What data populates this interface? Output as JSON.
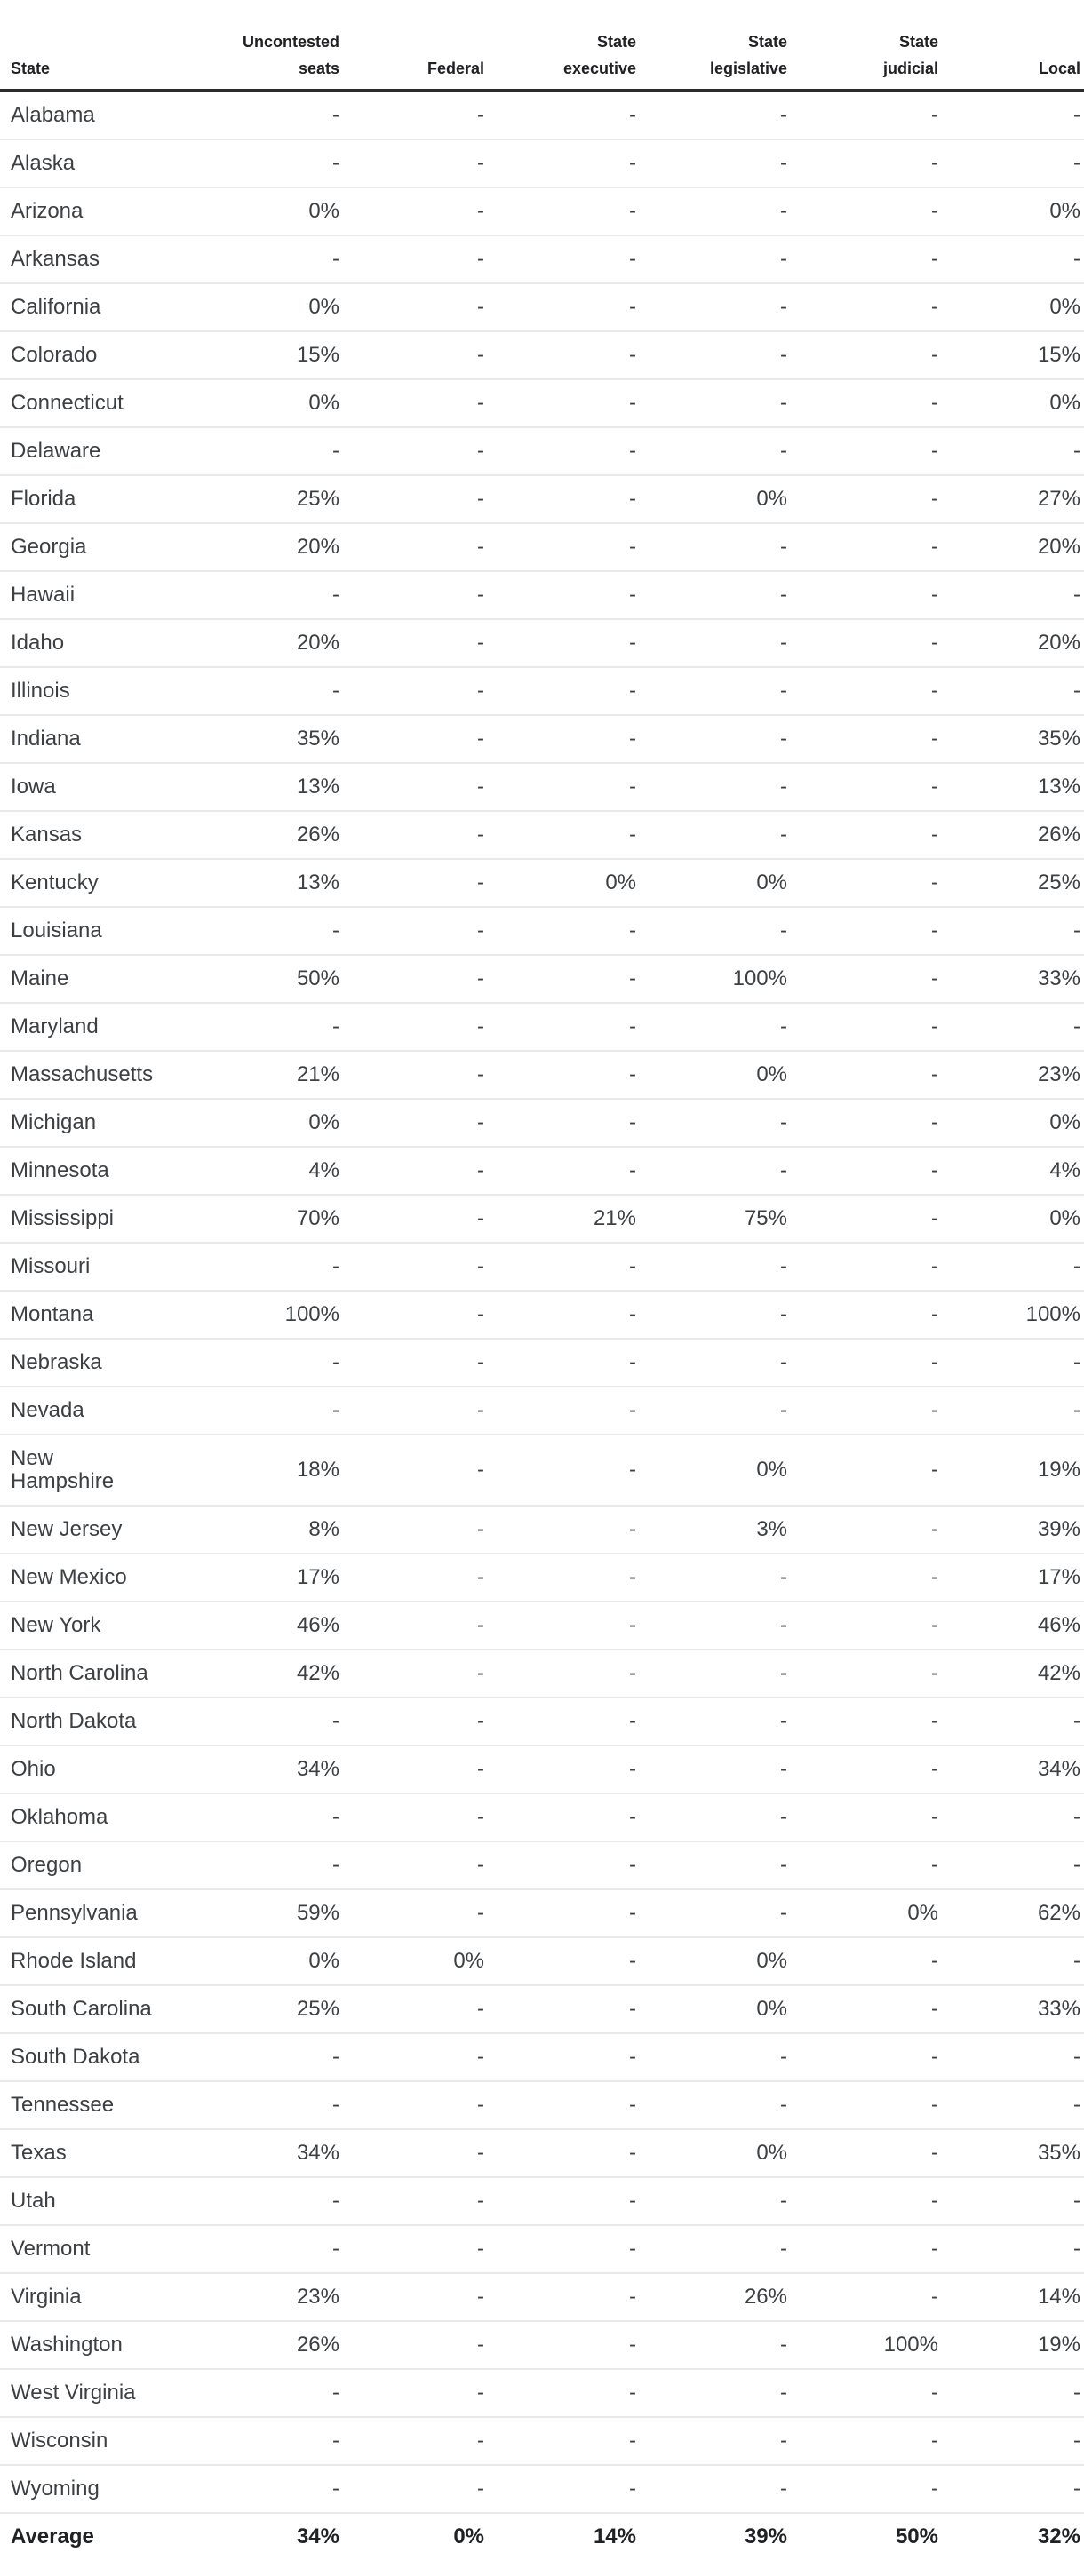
{
  "colors": {
    "text": "#3c4043",
    "heading": "#202124",
    "header_rule": "#2b2b2b",
    "row_separator": "#e9e9e9",
    "background": "#ffffff"
  },
  "chart_data": {
    "type": "table",
    "columns": [
      "State",
      "Uncontested\nseats",
      "Federal",
      "State\nexecutive",
      "State\nlegislative",
      "State\njudicial",
      "Local"
    ],
    "rows": [
      [
        "Alabama",
        "-",
        "-",
        "-",
        "-",
        "-",
        "-"
      ],
      [
        "Alaska",
        "-",
        "-",
        "-",
        "-",
        "-",
        "-"
      ],
      [
        "Arizona",
        "0%",
        "-",
        "-",
        "-",
        "-",
        "0%"
      ],
      [
        "Arkansas",
        "-",
        "-",
        "-",
        "-",
        "-",
        "-"
      ],
      [
        "California",
        "0%",
        "-",
        "-",
        "-",
        "-",
        "0%"
      ],
      [
        "Colorado",
        "15%",
        "-",
        "-",
        "-",
        "-",
        "15%"
      ],
      [
        "Connecticut",
        "0%",
        "-",
        "-",
        "-",
        "-",
        "0%"
      ],
      [
        "Delaware",
        "-",
        "-",
        "-",
        "-",
        "-",
        "-"
      ],
      [
        "Florida",
        "25%",
        "-",
        "-",
        "0%",
        "-",
        "27%"
      ],
      [
        "Georgia",
        "20%",
        "-",
        "-",
        "-",
        "-",
        "20%"
      ],
      [
        "Hawaii",
        "-",
        "-",
        "-",
        "-",
        "-",
        "-"
      ],
      [
        "Idaho",
        "20%",
        "-",
        "-",
        "-",
        "-",
        "20%"
      ],
      [
        "Illinois",
        "-",
        "-",
        "-",
        "-",
        "-",
        "-"
      ],
      [
        "Indiana",
        "35%",
        "-",
        "-",
        "-",
        "-",
        "35%"
      ],
      [
        "Iowa",
        "13%",
        "-",
        "-",
        "-",
        "-",
        "13%"
      ],
      [
        "Kansas",
        "26%",
        "-",
        "-",
        "-",
        "-",
        "26%"
      ],
      [
        "Kentucky",
        "13%",
        "-",
        "0%",
        "0%",
        "-",
        "25%"
      ],
      [
        "Louisiana",
        "-",
        "-",
        "-",
        "-",
        "-",
        "-"
      ],
      [
        "Maine",
        "50%",
        "-",
        "-",
        "100%",
        "-",
        "33%"
      ],
      [
        "Maryland",
        "-",
        "-",
        "-",
        "-",
        "-",
        "-"
      ],
      [
        "Massachusetts",
        "21%",
        "-",
        "-",
        "0%",
        "-",
        "23%"
      ],
      [
        "Michigan",
        "0%",
        "-",
        "-",
        "-",
        "-",
        "0%"
      ],
      [
        "Minnesota",
        "4%",
        "-",
        "-",
        "-",
        "-",
        "4%"
      ],
      [
        "Mississippi",
        "70%",
        "-",
        "21%",
        "75%",
        "-",
        "0%"
      ],
      [
        "Missouri",
        "-",
        "-",
        "-",
        "-",
        "-",
        "-"
      ],
      [
        "Montana",
        "100%",
        "-",
        "-",
        "-",
        "-",
        "100%"
      ],
      [
        "Nebraska",
        "-",
        "-",
        "-",
        "-",
        "-",
        "-"
      ],
      [
        "Nevada",
        "-",
        "-",
        "-",
        "-",
        "-",
        "-"
      ],
      [
        "New\nHampshire",
        "18%",
        "-",
        "-",
        "0%",
        "-",
        "19%"
      ],
      [
        "New Jersey",
        "8%",
        "-",
        "-",
        "3%",
        "-",
        "39%"
      ],
      [
        "New Mexico",
        "17%",
        "-",
        "-",
        "-",
        "-",
        "17%"
      ],
      [
        "New York",
        "46%",
        "-",
        "-",
        "-",
        "-",
        "46%"
      ],
      [
        "North Carolina",
        "42%",
        "-",
        "-",
        "-",
        "-",
        "42%"
      ],
      [
        "North Dakota",
        "-",
        "-",
        "-",
        "-",
        "-",
        "-"
      ],
      [
        "Ohio",
        "34%",
        "-",
        "-",
        "-",
        "-",
        "34%"
      ],
      [
        "Oklahoma",
        "-",
        "-",
        "-",
        "-",
        "-",
        "-"
      ],
      [
        "Oregon",
        "-",
        "-",
        "-",
        "-",
        "-",
        "-"
      ],
      [
        "Pennsylvania",
        "59%",
        "-",
        "-",
        "-",
        "0%",
        "62%"
      ],
      [
        "Rhode Island",
        "0%",
        "0%",
        "-",
        "0%",
        "-",
        "-"
      ],
      [
        "South Carolina",
        "25%",
        "-",
        "-",
        "0%",
        "-",
        "33%"
      ],
      [
        "South Dakota",
        "-",
        "-",
        "-",
        "-",
        "-",
        "-"
      ],
      [
        "Tennessee",
        "-",
        "-",
        "-",
        "-",
        "-",
        "-"
      ],
      [
        "Texas",
        "34%",
        "-",
        "-",
        "0%",
        "-",
        "35%"
      ],
      [
        "Utah",
        "-",
        "-",
        "-",
        "-",
        "-",
        "-"
      ],
      [
        "Vermont",
        "-",
        "-",
        "-",
        "-",
        "-",
        "-"
      ],
      [
        "Virginia",
        "23%",
        "-",
        "-",
        "26%",
        "-",
        "14%"
      ],
      [
        "Washington",
        "26%",
        "-",
        "-",
        "-",
        "100%",
        "19%"
      ],
      [
        "West Virginia",
        "-",
        "-",
        "-",
        "-",
        "-",
        "-"
      ],
      [
        "Wisconsin",
        "-",
        "-",
        "-",
        "-",
        "-",
        "-"
      ],
      [
        "Wyoming",
        "-",
        "-",
        "-",
        "-",
        "-",
        "-"
      ]
    ],
    "footer": [
      "Average",
      "34%",
      "0%",
      "14%",
      "39%",
      "50%",
      "32%"
    ]
  }
}
